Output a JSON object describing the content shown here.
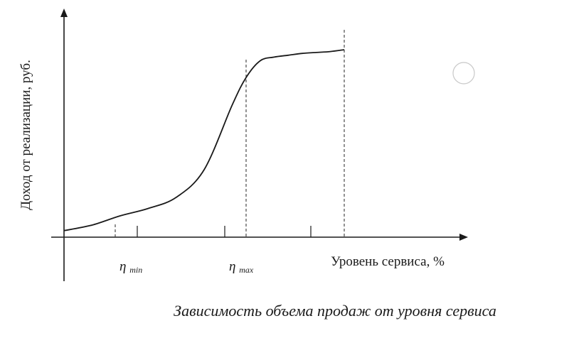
{
  "chart_data": {
    "type": "line",
    "title": "",
    "caption": "Зависимость объема продаж от уровня сервиса",
    "xlabel": "Уровень сервиса, %",
    "ylabel": "Доход от реализации, руб.",
    "tick_labels": [
      {
        "main": "η",
        "sub": "min"
      },
      {
        "main": "η",
        "sub": "max"
      }
    ],
    "series": [
      {
        "values_description": "S-shaped curve",
        "x": [
          0,
          10,
          20,
          30,
          40,
          50,
          60,
          65,
          70,
          75,
          80,
          85,
          90,
          95,
          100
        ],
        "y": [
          2,
          5,
          10,
          14,
          20,
          35,
          70,
          85,
          94,
          96,
          97,
          98,
          98.5,
          99,
          100
        ]
      }
    ],
    "ylim": [
      0,
      100
    ],
    "grid": false
  }
}
